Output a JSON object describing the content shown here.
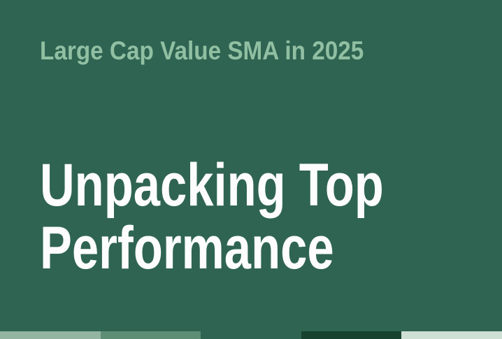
{
  "slide": {
    "background_color": "#2F6452",
    "kicker": {
      "text": "Large Cap Value SMA in 2025",
      "color": "#90BFA2"
    },
    "title": {
      "line1": "Unpacking Top",
      "line2": "Performance",
      "color": "#FCFDFC"
    },
    "footer_bars": [
      {
        "name": "footer-bar-1",
        "color": "#93B4A1"
      },
      {
        "name": "footer-bar-2",
        "color": "#5E8E74"
      },
      {
        "name": "footer-bar-3",
        "color": "#2F6452"
      },
      {
        "name": "footer-bar-4",
        "color": "#17422F"
      },
      {
        "name": "footer-bar-5",
        "color": "#CEDFD3"
      }
    ]
  }
}
